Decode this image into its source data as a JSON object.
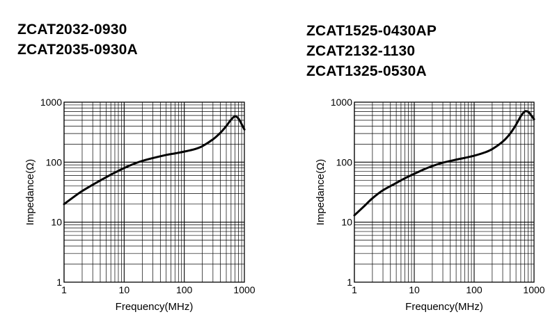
{
  "chart_data": [
    {
      "type": "line",
      "title_lines": [
        "ZCAT2032-0930",
        "ZCAT2035-0930A"
      ],
      "xlabel": "Frequency(MHz)",
      "ylabel": "Impedance(Ω)",
      "x_scale": "log",
      "y_scale": "log",
      "xlim": [
        1,
        1000
      ],
      "ylim": [
        1,
        1000
      ],
      "x_ticks": [
        "1",
        "10",
        "100",
        "1000"
      ],
      "y_ticks": [
        "1",
        "10",
        "100",
        "1000"
      ],
      "grid": true,
      "series": [
        {
          "x": [
            1,
            1.5,
            2,
            3,
            5,
            7,
            10,
            15,
            20,
            30,
            50,
            70,
            100,
            150,
            200,
            300,
            400,
            500,
            600,
            700,
            800,
            900,
            1000
          ],
          "y": [
            20,
            27,
            33,
            42,
            56,
            67,
            80,
            95,
            105,
            117,
            132,
            140,
            150,
            165,
            185,
            240,
            310,
            400,
            510,
            580,
            530,
            430,
            350
          ]
        }
      ]
    },
    {
      "type": "line",
      "title_lines": [
        "ZCAT1525-0430AP",
        "ZCAT2132-1130",
        "ZCAT1325-0530A"
      ],
      "xlabel": "Frequency(MHz)",
      "ylabel": "Impedance(Ω)",
      "x_scale": "log",
      "y_scale": "log",
      "xlim": [
        1,
        1000
      ],
      "ylim": [
        1,
        1000
      ],
      "x_ticks": [
        "1",
        "10",
        "100",
        "1000"
      ],
      "y_ticks": [
        "1",
        "10",
        "100",
        "1000"
      ],
      "grid": true,
      "series": [
        {
          "x": [
            1,
            1.5,
            2,
            3,
            5,
            7,
            10,
            15,
            20,
            30,
            50,
            70,
            100,
            150,
            200,
            300,
            400,
            500,
            600,
            700,
            800,
            900,
            1000
          ],
          "y": [
            13,
            19,
            25,
            34,
            45,
            54,
            64,
            77,
            86,
            98,
            110,
            118,
            128,
            145,
            165,
            220,
            300,
            420,
            580,
            700,
            690,
            600,
            520
          ]
        }
      ]
    }
  ]
}
